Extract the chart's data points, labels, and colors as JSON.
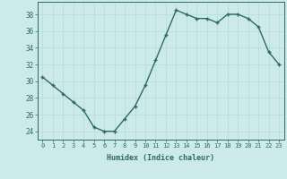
{
  "x": [
    0,
    1,
    2,
    3,
    4,
    5,
    6,
    7,
    8,
    9,
    10,
    11,
    12,
    13,
    14,
    15,
    16,
    17,
    18,
    19,
    20,
    21,
    22,
    23
  ],
  "y": [
    30.5,
    29.5,
    28.5,
    27.5,
    26.5,
    24.5,
    24.0,
    24.0,
    25.5,
    27.0,
    29.5,
    32.5,
    35.5,
    38.5,
    38.0,
    37.5,
    37.5,
    37.0,
    38.0,
    38.0,
    37.5,
    36.5,
    33.5,
    32.0
  ],
  "line_color": "#2e6b5e",
  "marker_color": "#2e6b5e",
  "bg_color": "#cdeaea",
  "grid_color": "#b8d8d8",
  "xlabel": "Humidex (Indice chaleur)",
  "ylabel_ticks": [
    24,
    26,
    28,
    30,
    32,
    34,
    36,
    38
  ],
  "xtick_labels": [
    "0",
    "1",
    "2",
    "3",
    "4",
    "5",
    "6",
    "7",
    "8",
    "9",
    "10",
    "11",
    "12",
    "13",
    "14",
    "15",
    "16",
    "17",
    "18",
    "19",
    "20",
    "21",
    "22",
    "23"
  ],
  "xlim": [
    -0.5,
    23.5
  ],
  "ylim": [
    23.0,
    39.5
  ]
}
